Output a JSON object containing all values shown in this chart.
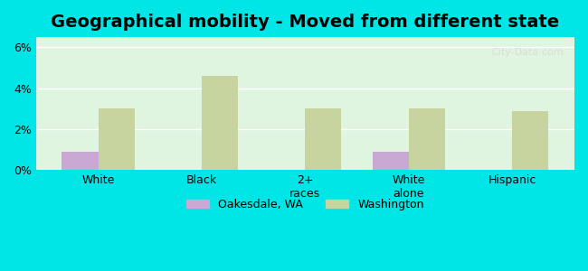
{
  "title": "Geographical mobility - Moved from different state",
  "categories": [
    "White",
    "Black",
    "2+\nraces",
    "White\nalone",
    "Hispanic"
  ],
  "oakesdale_values": [
    0.9,
    0.0,
    0.0,
    0.9,
    0.0
  ],
  "washington_values": [
    3.0,
    4.6,
    3.0,
    3.0,
    2.9
  ],
  "oakesdale_color": "#c9a8d4",
  "washington_color": "#c8d4a0",
  "background_color": "#e0f5e0",
  "outer_background": "#00e5e5",
  "ylim": [
    0,
    6.5
  ],
  "yticks": [
    0,
    2,
    4,
    6
  ],
  "ytick_labels": [
    "0%",
    "2%",
    "4%",
    "6%"
  ],
  "bar_width": 0.35,
  "legend_label_oakesdale": "Oakesdale, WA",
  "legend_label_washington": "Washington",
  "title_fontsize": 14,
  "tick_fontsize": 9
}
